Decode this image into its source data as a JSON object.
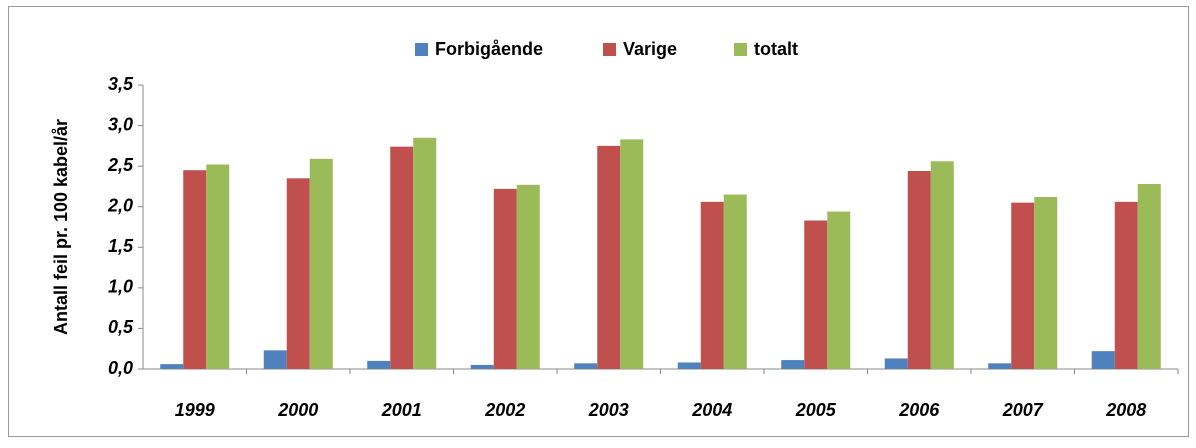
{
  "chart_data": {
    "type": "bar",
    "y_label": "Antall feil pr. 100 kabel/år",
    "categories": [
      "1999",
      "2000",
      "2001",
      "2002",
      "2003",
      "2004",
      "2005",
      "2006",
      "2007",
      "2008"
    ],
    "series": [
      {
        "name": "Forbigående",
        "color": "#4f81bd",
        "values": [
          0.06,
          0.23,
          0.1,
          0.05,
          0.07,
          0.08,
          0.11,
          0.13,
          0.07,
          0.22
        ]
      },
      {
        "name": "Varige",
        "color": "#c0504d",
        "values": [
          2.45,
          2.35,
          2.74,
          2.22,
          2.75,
          2.06,
          1.83,
          2.44,
          2.05,
          2.06
        ]
      },
      {
        "name": "totalt",
        "color": "#9bbb59",
        "values": [
          2.52,
          2.59,
          2.85,
          2.27,
          2.83,
          2.15,
          1.94,
          2.56,
          2.12,
          2.28
        ]
      }
    ],
    "ylim": [
      0,
      3.5
    ],
    "yticks": [
      {
        "value": 0,
        "label": "0,0"
      },
      {
        "value": 0.5,
        "label": "0,5"
      },
      {
        "value": 1,
        "label": "1,0"
      },
      {
        "value": 1.5,
        "label": "1,5"
      },
      {
        "value": 2,
        "label": "2,0"
      },
      {
        "value": 2.5,
        "label": "2,5"
      },
      {
        "value": 3,
        "label": "3,0"
      },
      {
        "value": 3.5,
        "label": "3,5"
      }
    ],
    "grid": false,
    "legend": "top"
  }
}
